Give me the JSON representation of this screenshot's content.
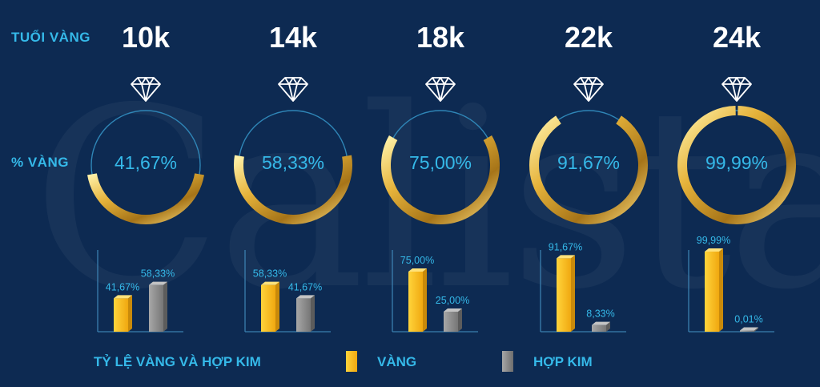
{
  "header": {
    "row1_label": "TUỔI  VÀNG",
    "row2_label": "% VÀNG"
  },
  "chart_data": {
    "type": "bar",
    "categories": [
      "10k",
      "14k",
      "18k",
      "22k",
      "24k"
    ],
    "ring_labels": [
      "41,67%",
      "58,33%",
      "75,00%",
      "91,67%",
      "99,99%"
    ],
    "series": [
      {
        "name": "VÀNG",
        "values": [
          41.67,
          58.33,
          75.0,
          91.67,
          99.99
        ],
        "labels": [
          "41,67%",
          "58,33%",
          "75,00%",
          "91,67%",
          "99,99%"
        ],
        "color": "#f6b81a"
      },
      {
        "name": "HỢP KIM",
        "values": [
          58.33,
          41.67,
          25.0,
          8.33,
          0.01
        ],
        "labels": [
          "58,33%",
          "41,67%",
          "25,00%",
          "8,33%",
          "0,01%"
        ],
        "color": "#8d8d8d"
      }
    ],
    "ylim": [
      0,
      100
    ],
    "legend": {
      "title": "TỶ LỆ VÀNG VÀ HỢP KIM",
      "placement": "bottom"
    }
  },
  "colors": {
    "background": "#0d2a52",
    "accent": "#35b9e9",
    "gold": "#f6b81a",
    "alloy": "#8d8d8d"
  },
  "icons": {
    "ring_top": "diamond-icon"
  },
  "watermark": "Calista"
}
